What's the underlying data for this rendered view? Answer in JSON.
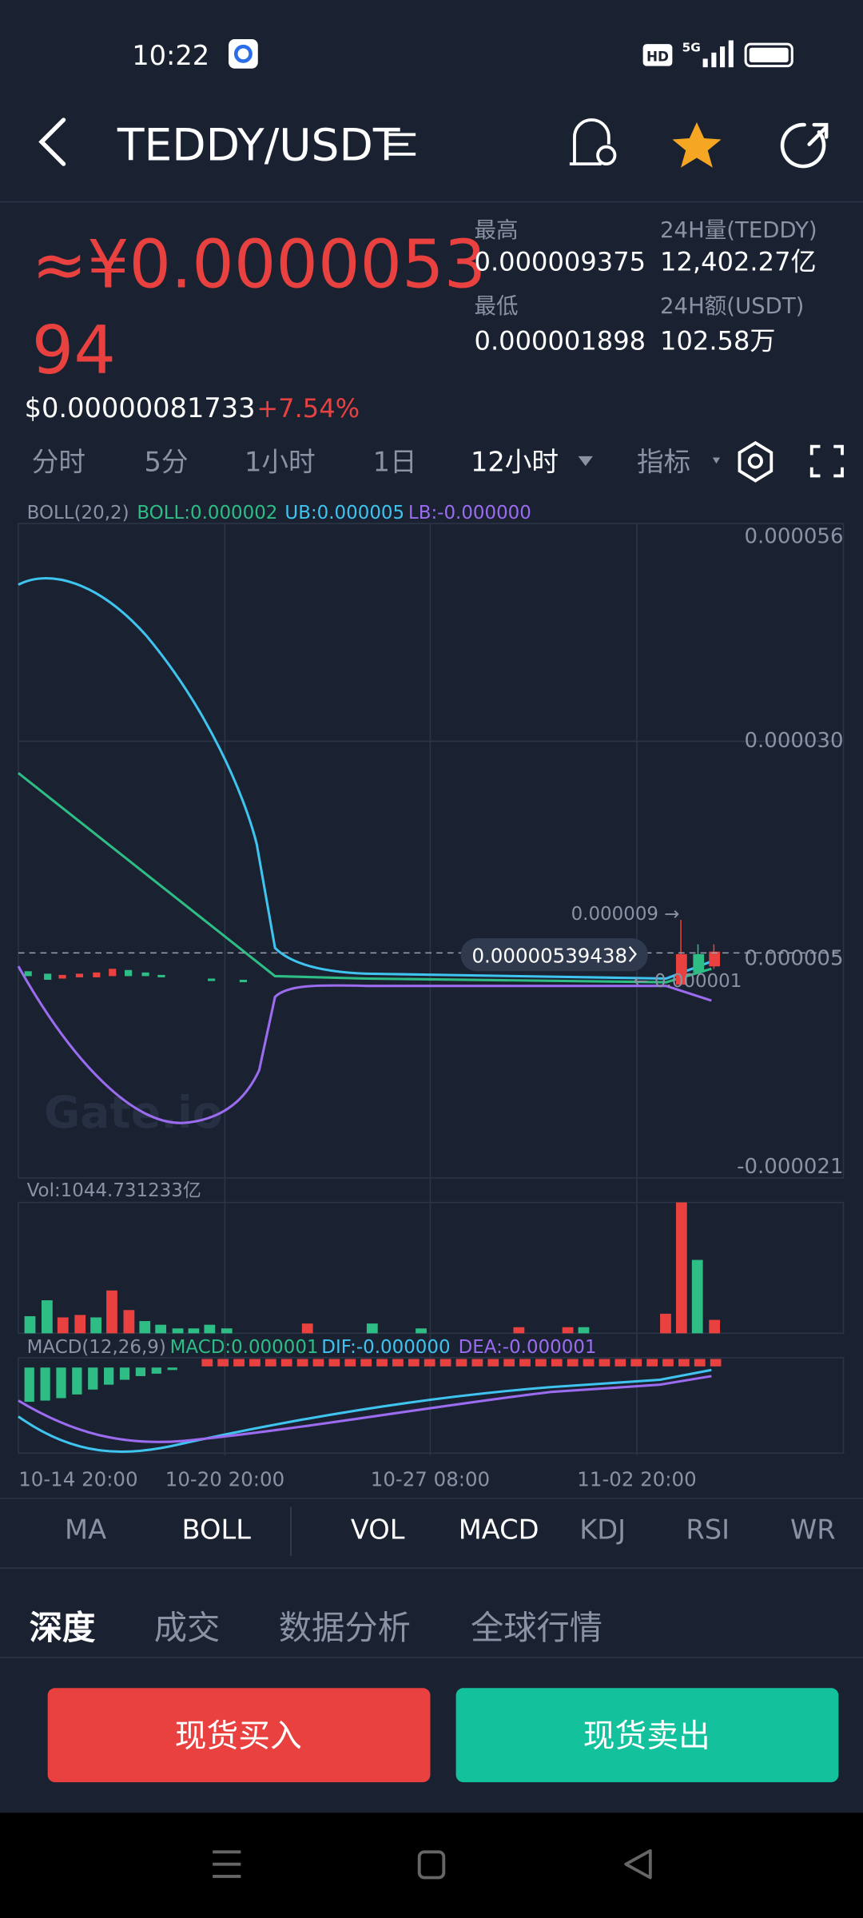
{
  "status_bar": {
    "time": "10:22",
    "hd": "HD",
    "network": "5G"
  },
  "header": {
    "pair": "TEDDY/USDT"
  },
  "price": {
    "lines": [
      "≈¥0.0000053",
      "94"
    ],
    "usd": "$0.00000081733",
    "change": "+7.54%"
  },
  "stats": [
    {
      "label": "最高",
      "value": "0.000009375"
    },
    {
      "label": "24H量(TEDDY)",
      "value": "12,402.27亿"
    },
    {
      "label": "最低",
      "value": "0.000001898"
    },
    {
      "label": "24H额(USDT)",
      "value": "102.58万"
    }
  ],
  "intervals": [
    "分时",
    "5分",
    "1小时",
    "1日",
    "12小时",
    "指标"
  ],
  "main_chart": {
    "indicator": "BOLL(20,2)",
    "boll": "BOLL:0.000002",
    "ub": "UB:0.000005",
    "lb": "LB:-0.000000",
    "y_labels": [
      "0.000056",
      "0.000030",
      "0.000005",
      "-0.000021"
    ],
    "last_price": "0.00000539438",
    "high_marker": "0.000009 →",
    "low_marker": "← 0.000001",
    "watermark": "Gate.io"
  },
  "volume": {
    "label": "Vol:1044.731233亿"
  },
  "macd": {
    "label": "MACD(12,26,9)",
    "macd": "MACD:0.000001",
    "dif": "DIF:-0.000000",
    "dea": "DEA:-0.000001"
  },
  "x_labels": [
    "10-14 20:00",
    "10-20 20:00",
    "10-27 08:00",
    "11-02 20:00"
  ],
  "indicator_tabs": [
    "MA",
    "BOLL",
    "VOL",
    "MACD",
    "KDJ",
    "RSI",
    "WR"
  ],
  "bottom_tabs": [
    "深度",
    "成交",
    "数据分析",
    "全球行情"
  ],
  "actions": {
    "buy": "现货买入",
    "sell": "现货卖出"
  }
}
